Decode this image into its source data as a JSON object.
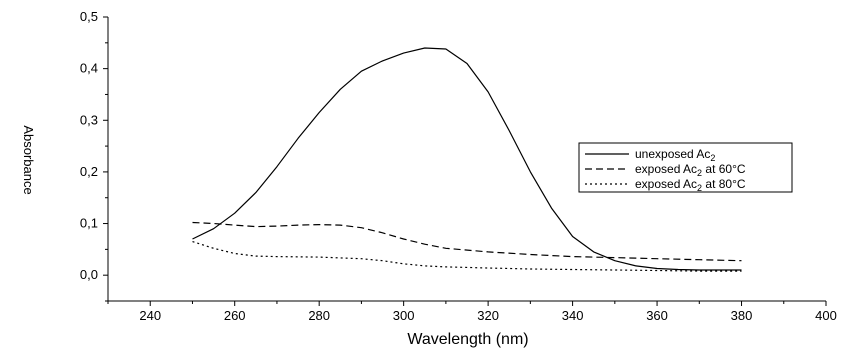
{
  "chart_data": {
    "type": "line",
    "xlabel": "Wavelength (nm)",
    "ylabel": "Absorbance",
    "xlim": [
      230,
      400
    ],
    "ylim": [
      -0.05,
      0.5
    ],
    "x_ticks": [
      240,
      260,
      280,
      300,
      320,
      340,
      360,
      380,
      400
    ],
    "x_tick_labels": [
      "240",
      "260",
      "280",
      "300",
      "320",
      "340",
      "360",
      "380",
      "400"
    ],
    "y_ticks": [
      0.0,
      0.1,
      0.2,
      0.3,
      0.4,
      0.5
    ],
    "y_tick_labels": [
      "0,0",
      "0,1",
      "0,2",
      "0,3",
      "0,4",
      "0,5"
    ],
    "grid": false,
    "legend_position": "right",
    "series": [
      {
        "name": "unexposed Ac2",
        "name_main": "unexposed Ac",
        "name_sub": "2",
        "name_tail": "",
        "style": "solid",
        "x": [
          250,
          255,
          260,
          265,
          270,
          275,
          280,
          285,
          290,
          295,
          300,
          305,
          310,
          315,
          320,
          325,
          330,
          335,
          340,
          345,
          350,
          355,
          360,
          365,
          370,
          375,
          380
        ],
        "y": [
          0.07,
          0.09,
          0.12,
          0.16,
          0.21,
          0.265,
          0.315,
          0.36,
          0.395,
          0.415,
          0.43,
          0.44,
          0.438,
          0.41,
          0.355,
          0.28,
          0.2,
          0.13,
          0.075,
          0.045,
          0.028,
          0.018,
          0.013,
          0.011,
          0.01,
          0.01,
          0.01
        ]
      },
      {
        "name": "exposed Ac2 at 60°C",
        "name_main": "exposed Ac",
        "name_sub": "2",
        "name_tail": " at 60°C",
        "style": "dashed",
        "x": [
          250,
          255,
          260,
          265,
          270,
          275,
          280,
          285,
          290,
          295,
          300,
          305,
          310,
          320,
          330,
          340,
          350,
          360,
          370,
          380
        ],
        "y": [
          0.102,
          0.1,
          0.097,
          0.094,
          0.095,
          0.097,
          0.098,
          0.097,
          0.092,
          0.082,
          0.07,
          0.06,
          0.052,
          0.045,
          0.04,
          0.036,
          0.034,
          0.032,
          0.03,
          0.028
        ]
      },
      {
        "name": "exposed Ac2 at 80°C",
        "name_main": "exposed Ac",
        "name_sub": "2",
        "name_tail": " at 80°C",
        "style": "dotted",
        "x": [
          250,
          255,
          260,
          265,
          270,
          280,
          290,
          295,
          300,
          305,
          310,
          320,
          330,
          340,
          350,
          360,
          370,
          380
        ],
        "y": [
          0.065,
          0.052,
          0.042,
          0.037,
          0.036,
          0.035,
          0.032,
          0.028,
          0.022,
          0.018,
          0.016,
          0.014,
          0.012,
          0.011,
          0.01,
          0.009,
          0.008,
          0.008
        ]
      }
    ]
  }
}
